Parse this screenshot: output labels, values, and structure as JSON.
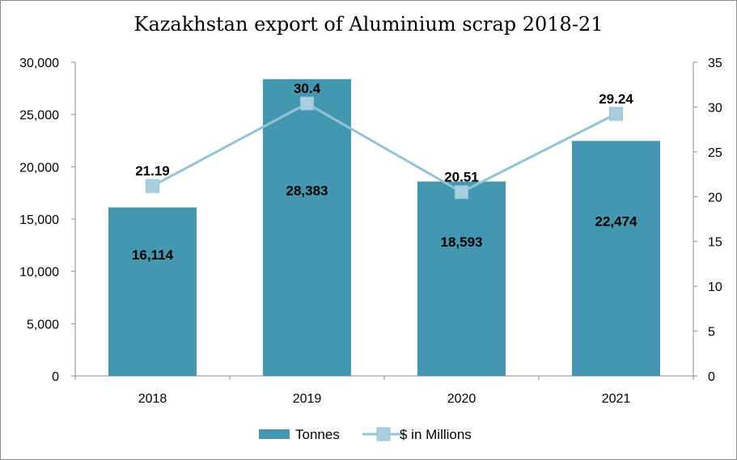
{
  "chart_data": {
    "type": "bar",
    "title": "Kazakhstan export of Aluminium scrap 2018-21",
    "categories": [
      "2018",
      "2019",
      "2020",
      "2021"
    ],
    "series": [
      {
        "name": "Tonnes",
        "kind": "bar",
        "axis": "left",
        "values": [
          16114,
          28383,
          18593,
          22474
        ],
        "labels": [
          "16,114",
          "28,383",
          "18,593",
          "22,474"
        ]
      },
      {
        "name": "$ in Millions",
        "kind": "line",
        "axis": "right",
        "values": [
          21.19,
          30.4,
          20.51,
          29.24
        ],
        "labels": [
          "21.19",
          "30.4",
          "20.51",
          "29.24"
        ]
      }
    ],
    "left_axis": {
      "range": [
        0,
        30000
      ],
      "ticks": [
        "0",
        "5,000",
        "10,000",
        "15,000",
        "20,000",
        "25,000",
        "30,000"
      ]
    },
    "right_axis": {
      "range": [
        0,
        35
      ],
      "ticks": [
        "0",
        "5",
        "10",
        "15",
        "20",
        "25",
        "30",
        "35"
      ]
    },
    "xlabel": "",
    "ylabel": "",
    "grid": false,
    "legend": "bottom"
  },
  "colors": {
    "bar": "#4397b0",
    "line": "#92c3d6",
    "marker": "#a9cfdf",
    "axis": "#8c8c8c"
  }
}
